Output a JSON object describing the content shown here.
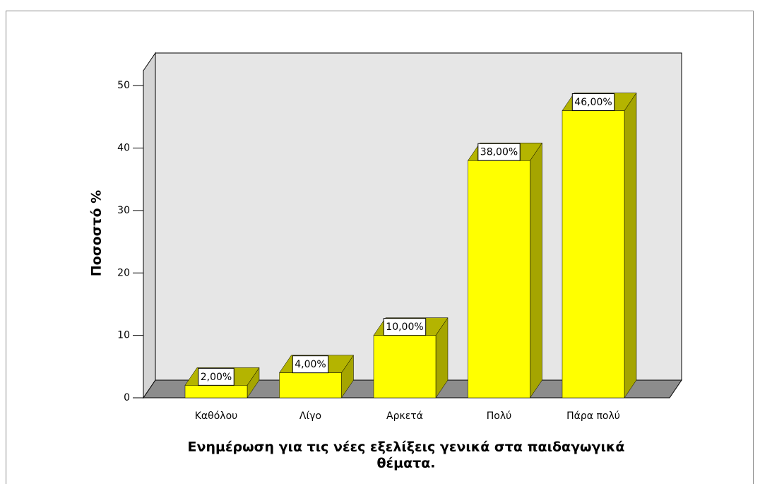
{
  "chart_data": {
    "type": "bar3d",
    "xlabel": [
      "Ενημέρωση για τις νέες εξελίξεις γενικά στα παιδαγωγικά",
      "θέματα."
    ],
    "ylabel": "Ποσοστό %",
    "categories": [
      "Καθόλου",
      "Λίγο",
      "Αρκετά",
      "Πολύ",
      "Πάρα πολύ"
    ],
    "values": [
      2,
      4,
      10,
      38,
      46
    ],
    "value_labels": [
      "2,00%",
      "4,00%",
      "10,00%",
      "38,00%",
      "46,00%"
    ],
    "color": "#ffff00",
    "ylim": [
      0,
      52.4
    ],
    "yticks": [
      0,
      10,
      20,
      30,
      40,
      50
    ]
  }
}
